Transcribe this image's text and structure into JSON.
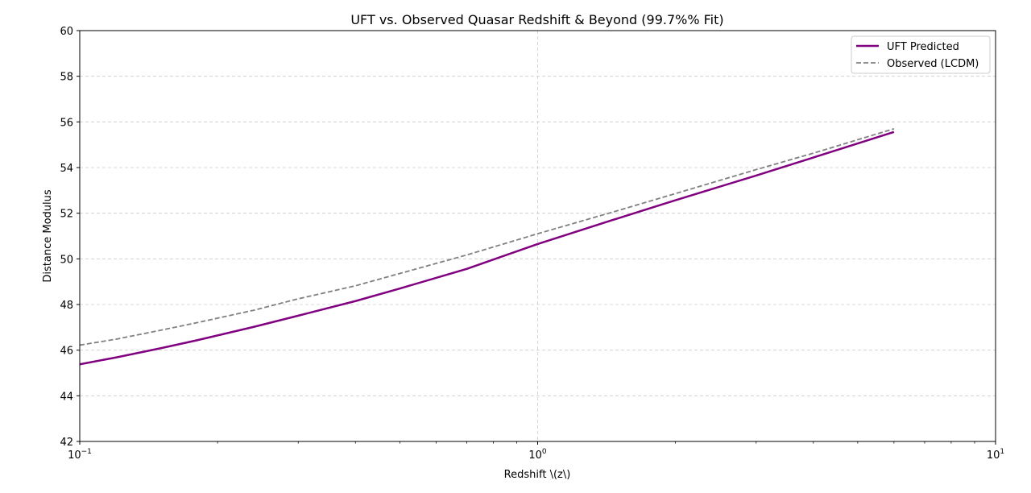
{
  "chart_data": {
    "type": "line",
    "title": "UFT vs. Observed Quasar Redshift & Beyond (99.7%% Fit)",
    "xlabel": "Redshift \\(z\\)",
    "ylabel": "Distance Modulus",
    "xscale": "log",
    "xlim": [
      0.1,
      10
    ],
    "ylim": [
      42,
      60
    ],
    "x_ticks": [
      {
        "value": 0.1,
        "base": "10",
        "exp": "−1"
      },
      {
        "value": 1,
        "base": "10",
        "exp": "0"
      },
      {
        "value": 10,
        "base": "10",
        "exp": "1"
      }
    ],
    "y_ticks": [
      42,
      44,
      46,
      48,
      50,
      52,
      54,
      56,
      58,
      60
    ],
    "grid": true,
    "legend_position": "top-right",
    "series": [
      {
        "name": "UFT Predicted",
        "color": "#800080",
        "style": "solid",
        "x": [
          0.1,
          0.12,
          0.15,
          0.18,
          0.24,
          0.3,
          0.4,
          0.5,
          0.7,
          1.0,
          1.5,
          2.0,
          3.0,
          4.0,
          6.0
        ],
        "y": [
          45.38,
          45.68,
          46.08,
          46.43,
          47.02,
          47.51,
          48.15,
          48.7,
          49.56,
          50.65,
          51.78,
          52.57,
          53.65,
          54.44,
          55.56
        ]
      },
      {
        "name": "Observed (LCDM)",
        "color": "#808080",
        "style": "dashed",
        "x": [
          0.1,
          0.12,
          0.15,
          0.18,
          0.24,
          0.3,
          0.4,
          0.5,
          0.7,
          1.0,
          1.5,
          2.0,
          3.0,
          4.0,
          6.0
        ],
        "y": [
          46.22,
          46.48,
          46.87,
          47.2,
          47.75,
          48.25,
          48.82,
          49.36,
          50.17,
          51.1,
          52.12,
          52.86,
          53.91,
          54.63,
          55.7
        ]
      }
    ]
  }
}
